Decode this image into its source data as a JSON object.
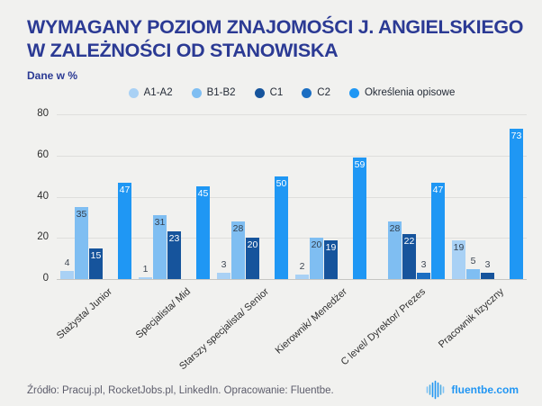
{
  "header": {
    "title_line1": "WYMAGANY POZIOM ZNAJOMOŚCI J. ANGIELSKIEGO",
    "title_line2": "W ZALEŻNOŚCI OD STANOWISKA",
    "subtitle": "Dane w %"
  },
  "chart_data": {
    "type": "bar",
    "title": "Wymagany poziom znajomości j. angielskiego w zależności od stanowiska",
    "ylabel": "Dane w %",
    "xlabel": "",
    "ylim": [
      0,
      80
    ],
    "yticks": [
      0,
      20,
      40,
      60,
      80
    ],
    "grid": true,
    "legend_position": "top",
    "categories": [
      "Stażysta/ Junior",
      "Specjalista/ Mid",
      "Starszy specjalista/ Senior",
      "Kierownik/ Menedżer",
      "C level/ Dyrektor/ Prezes",
      "Pracownik fizyczny"
    ],
    "series": [
      {
        "name": "A1-A2",
        "color": "#a9d1f5",
        "label_style": "dark",
        "values": [
          4,
          1,
          3,
          2,
          0,
          19
        ]
      },
      {
        "name": "B1-B2",
        "color": "#7fbef2",
        "label_style": "dark",
        "values": [
          35,
          31,
          28,
          20,
          28,
          5
        ]
      },
      {
        "name": "C1",
        "color": "#16549c",
        "label_style": "light",
        "values": [
          15,
          23,
          20,
          19,
          22,
          3
        ]
      },
      {
        "name": "C2",
        "color": "#1b6ec2",
        "label_style": "light",
        "values": [
          0,
          0,
          0,
          0,
          3,
          0
        ]
      },
      {
        "name": "Określenia opisowe",
        "color": "#1f97f4",
        "label_style": "light",
        "values": [
          47,
          45,
          50,
          59,
          47,
          73
        ]
      }
    ]
  },
  "footer": {
    "source": "Źródło: Pracuj.pl, RocketJobs.pl, LinkedIn. Opracowanie: Fluentbe.",
    "brand": "fluentbe.com",
    "brand_color": "#2196f3",
    "brand_icon": "audio-wave-icon"
  }
}
